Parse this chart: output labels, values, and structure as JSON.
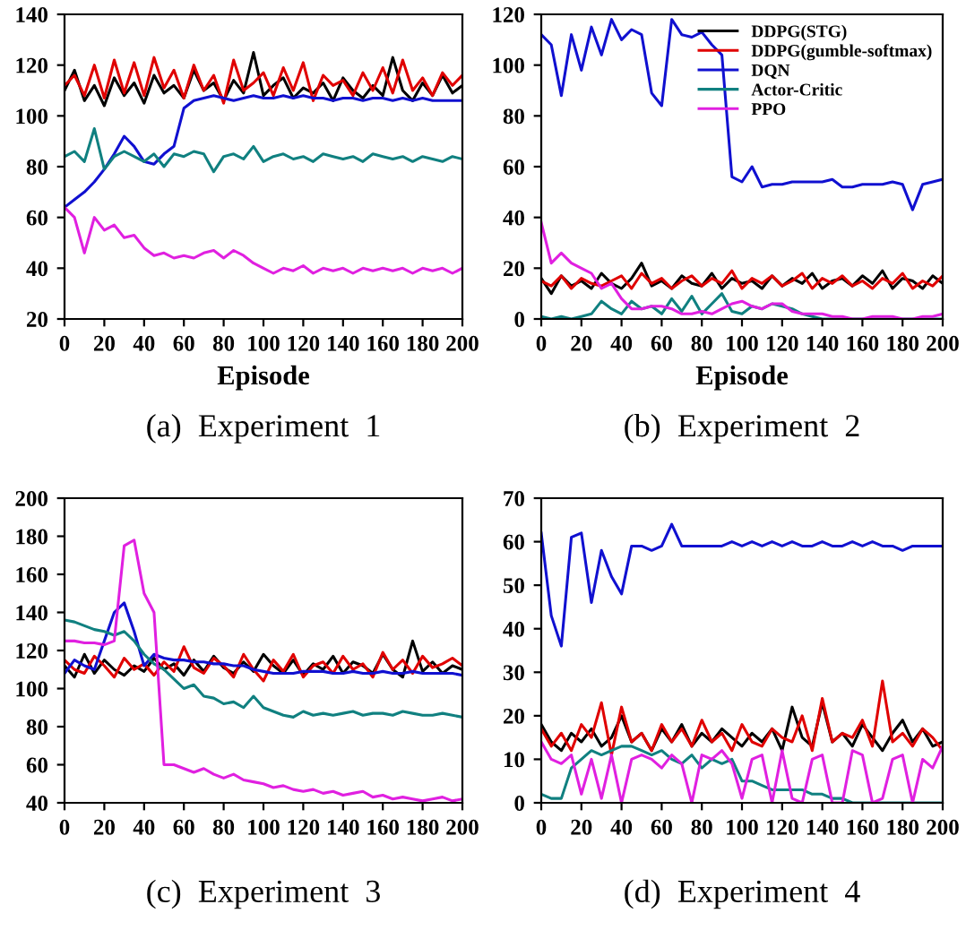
{
  "chart_data": [
    {
      "type": "line",
      "title": "(a)  Experiment  1",
      "xlabel": "Episode",
      "xlim": [
        0,
        200
      ],
      "xticks": [
        0,
        20,
        40,
        60,
        80,
        100,
        120,
        140,
        160,
        180,
        200
      ],
      "ylim": [
        20,
        140
      ],
      "yticks": [
        20,
        40,
        60,
        80,
        100,
        120,
        140
      ],
      "legend": false,
      "x": [
        0,
        5,
        10,
        15,
        20,
        25,
        30,
        35,
        40,
        45,
        50,
        55,
        60,
        65,
        70,
        75,
        80,
        85,
        90,
        95,
        100,
        105,
        110,
        115,
        120,
        125,
        130,
        135,
        140,
        145,
        150,
        155,
        160,
        165,
        170,
        175,
        180,
        185,
        190,
        195,
        200
      ],
      "series": [
        {
          "color": "#000000",
          "values": [
            110,
            118,
            106,
            112,
            104,
            115,
            108,
            113,
            105,
            116,
            109,
            112,
            107,
            118,
            110,
            113,
            106,
            114,
            109,
            125,
            108,
            112,
            115,
            107,
            111,
            109,
            113,
            106,
            115,
            110,
            107,
            112,
            108,
            123,
            110,
            106,
            113,
            108,
            116,
            109,
            112
          ]
        },
        {
          "color": "#e00000",
          "values": [
            112,
            116,
            108,
            120,
            107,
            122,
            109,
            121,
            108,
            123,
            111,
            118,
            107,
            120,
            110,
            116,
            105,
            122,
            110,
            113,
            117,
            108,
            119,
            110,
            121,
            106,
            116,
            112,
            114,
            108,
            117,
            110,
            119,
            109,
            122,
            110,
            115,
            108,
            117,
            112,
            116
          ]
        },
        {
          "color": "#1010d0",
          "values": [
            64,
            67,
            70,
            74,
            79,
            85,
            92,
            88,
            82,
            81,
            85,
            88,
            103,
            106,
            107,
            108,
            107,
            106,
            107,
            108,
            107,
            107,
            108,
            107,
            108,
            107,
            107,
            106,
            107,
            107,
            106,
            107,
            107,
            106,
            107,
            106,
            107,
            106,
            106,
            106,
            106
          ]
        },
        {
          "color": "#108080",
          "values": [
            84,
            86,
            82,
            95,
            79,
            84,
            86,
            84,
            82,
            85,
            80,
            85,
            84,
            86,
            85,
            78,
            84,
            85,
            83,
            88,
            82,
            84,
            85,
            83,
            84,
            82,
            85,
            84,
            83,
            84,
            82,
            85,
            84,
            83,
            84,
            82,
            84,
            83,
            82,
            84,
            83
          ]
        },
        {
          "color": "#e020e0",
          "values": [
            64,
            60,
            46,
            60,
            55,
            57,
            52,
            53,
            48,
            45,
            46,
            44,
            45,
            44,
            46,
            47,
            44,
            47,
            45,
            42,
            40,
            38,
            40,
            39,
            41,
            38,
            40,
            39,
            40,
            38,
            40,
            39,
            40,
            39,
            40,
            38,
            40,
            39,
            40,
            38,
            40
          ]
        }
      ]
    },
    {
      "type": "line",
      "title": "(b)  Experiment  2",
      "xlabel": "Episode",
      "xlim": [
        0,
        200
      ],
      "xticks": [
        0,
        20,
        40,
        60,
        80,
        100,
        120,
        140,
        160,
        180,
        200
      ],
      "ylim": [
        0,
        120
      ],
      "yticks": [
        0,
        20,
        40,
        60,
        80,
        100,
        120
      ],
      "legend": "top right",
      "x": [
        0,
        5,
        10,
        15,
        20,
        25,
        30,
        35,
        40,
        45,
        50,
        55,
        60,
        65,
        70,
        75,
        80,
        85,
        90,
        95,
        100,
        105,
        110,
        115,
        120,
        125,
        130,
        135,
        140,
        145,
        150,
        155,
        160,
        165,
        170,
        175,
        180,
        185,
        190,
        195,
        200
      ],
      "series": [
        {
          "name": "DDPG(STG)",
          "color": "#000000",
          "values": [
            16,
            10,
            17,
            13,
            15,
            12,
            18,
            14,
            12,
            16,
            22,
            13,
            15,
            12,
            17,
            14,
            13,
            18,
            12,
            16,
            14,
            15,
            12,
            17,
            13,
            16,
            14,
            18,
            12,
            15,
            16,
            13,
            17,
            14,
            19,
            12,
            16,
            15,
            12,
            17,
            14
          ]
        },
        {
          "name": "DDPG(gumble-softmax)",
          "color": "#e00000",
          "values": [
            15,
            13,
            17,
            12,
            16,
            14,
            13,
            15,
            17,
            12,
            18,
            14,
            16,
            12,
            15,
            17,
            13,
            16,
            14,
            19,
            12,
            16,
            14,
            17,
            13,
            15,
            18,
            12,
            16,
            14,
            17,
            13,
            15,
            12,
            16,
            14,
            18,
            12,
            15,
            13,
            17
          ]
        },
        {
          "name": "DQN",
          "color": "#1010d0",
          "values": [
            112,
            108,
            88,
            112,
            98,
            115,
            104,
            118,
            110,
            114,
            112,
            89,
            84,
            118,
            112,
            111,
            113,
            108,
            104,
            56,
            54,
            60,
            52,
            53,
            53,
            54,
            54,
            54,
            54,
            55,
            52,
            52,
            53,
            53,
            53,
            54,
            53,
            43,
            53,
            54,
            55
          ]
        },
        {
          "name": "Actor-Critic",
          "color": "#108080",
          "values": [
            1,
            0,
            1,
            0,
            1,
            2,
            7,
            4,
            2,
            7,
            4,
            5,
            2,
            8,
            3,
            9,
            2,
            6,
            10,
            3,
            2,
            5,
            4,
            6,
            5,
            4,
            2,
            1,
            0,
            0,
            0,
            0,
            0,
            0,
            0,
            0,
            0,
            0,
            0,
            0,
            0
          ]
        },
        {
          "name": "PPO",
          "color": "#e020e0",
          "values": [
            38,
            22,
            26,
            22,
            20,
            18,
            12,
            14,
            8,
            4,
            4,
            5,
            5,
            4,
            2,
            2,
            3,
            2,
            4,
            6,
            7,
            5,
            4,
            6,
            6,
            3,
            2,
            2,
            2,
            1,
            1,
            0,
            0,
            1,
            1,
            1,
            0,
            0,
            1,
            1,
            2
          ]
        }
      ]
    },
    {
      "type": "line",
      "title": "(c)  Experiment  3",
      "xlim": [
        0,
        200
      ],
      "xticks": [
        0,
        20,
        40,
        60,
        80,
        100,
        120,
        140,
        160,
        180,
        200
      ],
      "ylim": [
        40,
        200
      ],
      "yticks": [
        40,
        60,
        80,
        100,
        120,
        140,
        160,
        180,
        200
      ],
      "legend": false,
      "x": [
        0,
        5,
        10,
        15,
        20,
        25,
        30,
        35,
        40,
        45,
        50,
        55,
        60,
        65,
        70,
        75,
        80,
        85,
        90,
        95,
        100,
        105,
        110,
        115,
        120,
        125,
        130,
        135,
        140,
        145,
        150,
        155,
        160,
        165,
        170,
        175,
        180,
        185,
        190,
        195,
        200
      ],
      "series": [
        {
          "color": "#000000",
          "values": [
            112,
            106,
            118,
            108,
            115,
            110,
            107,
            112,
            109,
            116,
            110,
            113,
            107,
            115,
            109,
            117,
            111,
            108,
            114,
            109,
            118,
            112,
            108,
            115,
            107,
            113,
            110,
            117,
            108,
            114,
            112,
            108,
            118,
            110,
            106,
            125,
            109,
            114,
            108,
            112,
            110
          ]
        },
        {
          "color": "#e00000",
          "values": [
            115,
            110,
            108,
            117,
            112,
            106,
            116,
            110,
            113,
            107,
            114,
            109,
            122,
            111,
            108,
            116,
            112,
            106,
            118,
            110,
            104,
            115,
            109,
            118,
            106,
            112,
            114,
            108,
            117,
            110,
            113,
            106,
            119,
            110,
            115,
            108,
            117,
            111,
            113,
            116,
            112
          ]
        },
        {
          "color": "#1010d0",
          "values": [
            108,
            115,
            112,
            110,
            125,
            140,
            145,
            130,
            112,
            118,
            116,
            115,
            115,
            114,
            114,
            113,
            113,
            112,
            112,
            110,
            109,
            108,
            108,
            108,
            109,
            109,
            109,
            108,
            108,
            109,
            108,
            108,
            109,
            108,
            108,
            109,
            108,
            108,
            108,
            108,
            107
          ]
        },
        {
          "color": "#108080",
          "values": [
            136,
            135,
            133,
            131,
            130,
            128,
            130,
            125,
            118,
            113,
            110,
            105,
            100,
            102,
            96,
            95,
            92,
            93,
            90,
            96,
            90,
            88,
            86,
            85,
            88,
            86,
            87,
            86,
            87,
            88,
            86,
            87,
            87,
            86,
            88,
            87,
            86,
            86,
            87,
            86,
            85
          ]
        },
        {
          "color": "#e020e0",
          "values": [
            125,
            125,
            124,
            124,
            123,
            125,
            175,
            178,
            150,
            140,
            60,
            60,
            58,
            56,
            58,
            55,
            53,
            55,
            52,
            51,
            50,
            48,
            49,
            47,
            46,
            47,
            45,
            46,
            44,
            45,
            46,
            43,
            44,
            42,
            43,
            42,
            41,
            42,
            43,
            41,
            42
          ]
        }
      ]
    },
    {
      "type": "line",
      "title": "(d)  Experiment  4",
      "xlim": [
        0,
        200
      ],
      "xticks": [
        0,
        20,
        40,
        60,
        80,
        100,
        120,
        140,
        160,
        180,
        200
      ],
      "ylim": [
        0,
        70
      ],
      "yticks": [
        0,
        10,
        20,
        30,
        40,
        50,
        60,
        70
      ],
      "legend": false,
      "x": [
        0,
        5,
        10,
        15,
        20,
        25,
        30,
        35,
        40,
        45,
        50,
        55,
        60,
        65,
        70,
        75,
        80,
        85,
        90,
        95,
        100,
        105,
        110,
        115,
        120,
        125,
        130,
        135,
        140,
        145,
        150,
        155,
        160,
        165,
        170,
        175,
        180,
        185,
        190,
        195,
        200
      ],
      "series": [
        {
          "color": "#000000",
          "values": [
            18,
            14,
            12,
            16,
            14,
            17,
            13,
            15,
            20,
            14,
            16,
            12,
            17,
            14,
            18,
            13,
            16,
            14,
            17,
            15,
            13,
            16,
            14,
            17,
            12,
            22,
            15,
            13,
            23,
            14,
            16,
            13,
            18,
            15,
            12,
            16,
            19,
            14,
            17,
            13,
            14
          ]
        },
        {
          "color": "#e00000",
          "values": [
            17,
            13,
            16,
            12,
            18,
            15,
            23,
            11,
            22,
            14,
            16,
            12,
            18,
            14,
            17,
            13,
            19,
            14,
            16,
            12,
            18,
            14,
            13,
            17,
            15,
            14,
            20,
            12,
            24,
            14,
            16,
            15,
            19,
            13,
            28,
            14,
            16,
            13,
            17,
            15,
            12
          ]
        },
        {
          "color": "#1010d0",
          "values": [
            62,
            43,
            36,
            61,
            62,
            46,
            58,
            52,
            48,
            59,
            59,
            58,
            59,
            64,
            59,
            59,
            59,
            59,
            59,
            60,
            59,
            60,
            59,
            60,
            59,
            60,
            59,
            59,
            60,
            59,
            59,
            60,
            59,
            60,
            59,
            59,
            58,
            59,
            59,
            59,
            59
          ]
        },
        {
          "color": "#108080",
          "values": [
            2,
            1,
            1,
            8,
            10,
            12,
            11,
            12,
            13,
            13,
            12,
            11,
            12,
            10,
            9,
            11,
            8,
            10,
            9,
            10,
            5,
            5,
            4,
            3,
            3,
            3,
            3,
            2,
            2,
            1,
            1,
            0,
            0,
            0,
            0,
            0,
            0,
            0,
            0,
            0,
            0
          ]
        },
        {
          "color": "#e020e0",
          "values": [
            14,
            10,
            9,
            11,
            2,
            10,
            1,
            11,
            0,
            10,
            11,
            10,
            8,
            11,
            9,
            0,
            11,
            10,
            12,
            9,
            1,
            10,
            11,
            0,
            12,
            1,
            0,
            10,
            11,
            0,
            0,
            12,
            11,
            0,
            1,
            10,
            11,
            0,
            10,
            8,
            13
          ]
        }
      ]
    }
  ]
}
